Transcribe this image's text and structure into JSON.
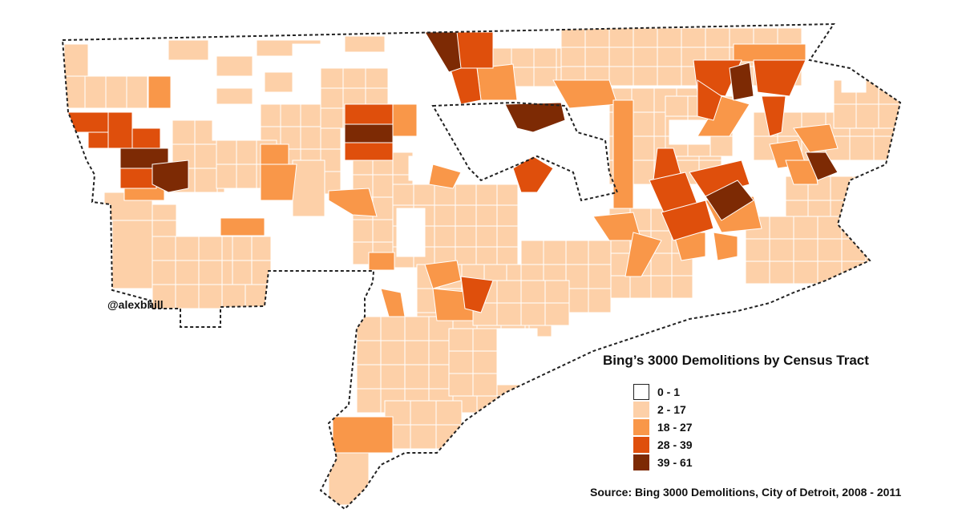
{
  "credit": "@alexbhill",
  "legend": {
    "title": "Bing’s 3000 Demolitions by Census Tract",
    "items": [
      {
        "label": "0 - 1",
        "color": "#ffffff"
      },
      {
        "label": "2 - 17",
        "color": "#fdd0a8"
      },
      {
        "label": "18 - 27",
        "color": "#f99749"
      },
      {
        "label": "28 - 39",
        "color": "#df4f0c"
      },
      {
        "label": "39 - 61",
        "color": "#7d2a04"
      }
    ]
  },
  "source": "Source: Bing 3000 Demolitions, City of Detroit, 2008 - 2011",
  "colors": {
    "boundary": "#222222",
    "tract_line": "#ffffff"
  }
}
